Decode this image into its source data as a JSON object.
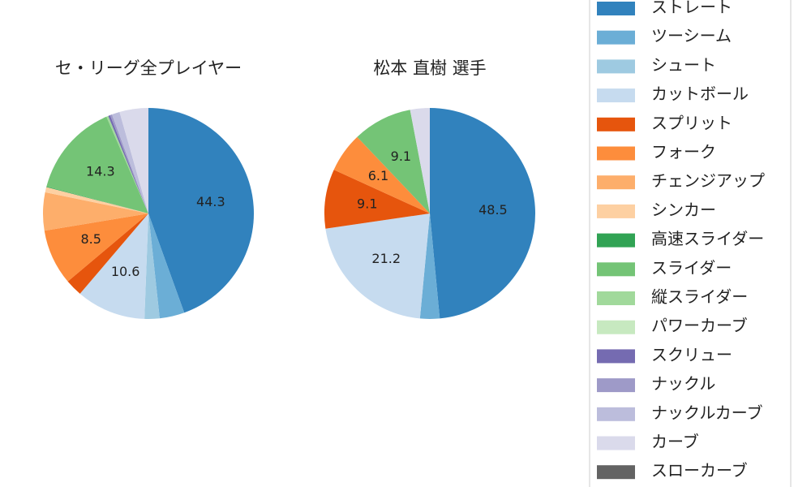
{
  "chart_data": {
    "type": "pie",
    "categories": [
      "ストレート",
      "ツーシーム",
      "シュート",
      "カットボール",
      "スプリット",
      "フォーク",
      "チェンジアップ",
      "シンカー",
      "高速スライダー",
      "スライダー",
      "縦スライダー",
      "パワーカーブ",
      "スクリュー",
      "ナックル",
      "ナックルカーブ",
      "カーブ",
      "スローカーブ"
    ],
    "colors": [
      "#3182bd",
      "#6baed6",
      "#9ecae1",
      "#c6dbef",
      "#e6550d",
      "#fd8d3c",
      "#fdae6b",
      "#fdd0a2",
      "#31a354",
      "#74c476",
      "#a1d99b",
      "#c7e9c0",
      "#756bb1",
      "#9e9ac8",
      "#bcbddc",
      "#dadaeb",
      "#636363"
    ],
    "series": [
      {
        "name": "セ・リーグ全プレイヤー",
        "values": [
          44.3,
          3.8,
          2.3,
          10.6,
          2.6,
          8.5,
          5.8,
          0.8,
          0.1,
          14.3,
          0.3,
          0,
          0.3,
          0.3,
          1.2,
          4.4,
          0
        ]
      },
      {
        "name": "松本 直樹  選手",
        "values": [
          48.5,
          3.0,
          0,
          21.2,
          9.1,
          6.1,
          0,
          0,
          0,
          9.1,
          0,
          0,
          0,
          0,
          0,
          3.0,
          0
        ]
      }
    ]
  }
}
